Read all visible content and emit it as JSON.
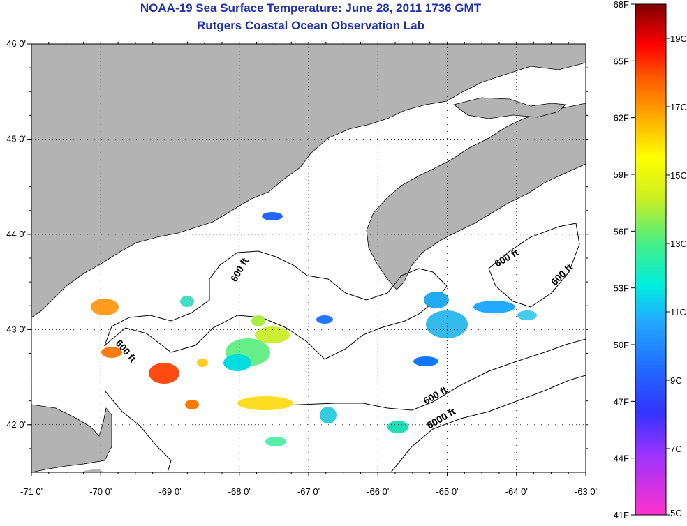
{
  "title": "NOAA-19 Sea Surface Temperature:  June 28, 2011 1736 GMT",
  "subtitle": "Rutgers Coastal Ocean Observation Lab",
  "map": {
    "lon_range": [
      -71,
      -63
    ],
    "lat_range": [
      41.5,
      46
    ],
    "lon_ticks": [
      {
        "value": -71,
        "label": "-71 0'"
      },
      {
        "value": -70,
        "label": "-70 0'"
      },
      {
        "value": -69,
        "label": "-69 0'"
      },
      {
        "value": -68,
        "label": "-68 0'"
      },
      {
        "value": -67,
        "label": "-67 0'"
      },
      {
        "value": -66,
        "label": "-66 0'"
      },
      {
        "value": -65,
        "label": "-65 0'"
      },
      {
        "value": -64,
        "label": "-64 0'"
      },
      {
        "value": -63,
        "label": "-63 0'"
      }
    ],
    "lat_ticks": [
      {
        "value": 46,
        "label": "46 0'"
      },
      {
        "value": 45,
        "label": "45 0'"
      },
      {
        "value": 44,
        "label": "44 0'"
      },
      {
        "value": 43,
        "label": "43 0'"
      },
      {
        "value": 42,
        "label": "42 0'"
      }
    ],
    "grid": "dotted",
    "land_color": "#b3b3b3",
    "contour_labels": [
      "600 ft",
      "600 ft",
      "600 ft",
      "600 ft",
      "6000 ft"
    ]
  },
  "colorbar": {
    "fahrenheit_labels": [
      "68F",
      "65F",
      "62F",
      "59F",
      "56F",
      "53F",
      "50F",
      "47F",
      "44F",
      "41F"
    ],
    "celsius_labels": [
      "19C",
      "17C",
      "15C",
      "13C",
      "11C",
      "9C",
      "7C",
      "5C"
    ]
  }
}
